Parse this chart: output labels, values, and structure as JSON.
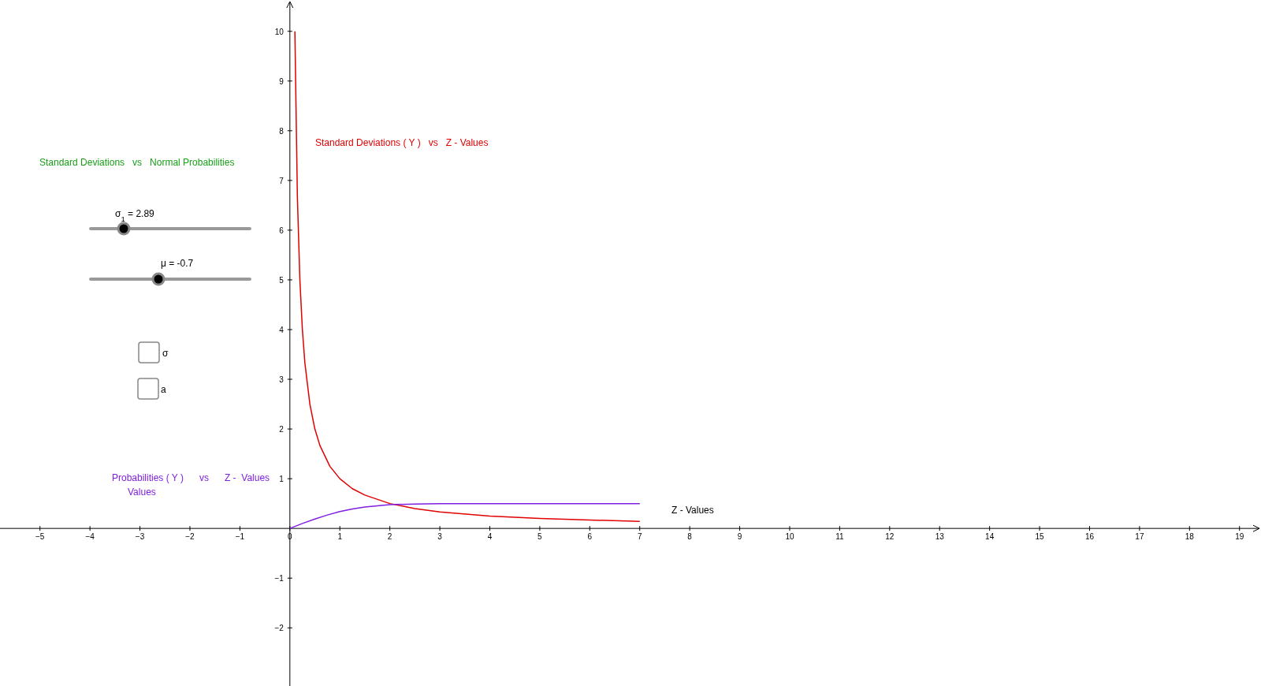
{
  "chart_data": {
    "type": "line",
    "title": "Standard Deviations   vs   Normal Probabilities",
    "xlabel": "Z  - Values",
    "xlim": [
      -5.8,
      19.43
    ],
    "ylim": [
      -3.17,
      10.63
    ],
    "xticks": [
      {
        "value": -5,
        "label": "−5"
      },
      {
        "value": -4,
        "label": "−4"
      },
      {
        "value": -3,
        "label": "−3"
      },
      {
        "value": -2,
        "label": "−2"
      },
      {
        "value": -1,
        "label": "−1"
      },
      0,
      1,
      2,
      3,
      4,
      5,
      6,
      7,
      8,
      9,
      10,
      11,
      12,
      13,
      14,
      15,
      16,
      17,
      18,
      19
    ],
    "yticks": [
      {
        "value": -2,
        "label": "−2"
      },
      {
        "value": -1,
        "label": "−1"
      },
      1,
      2,
      3,
      4,
      5,
      6,
      7,
      8,
      9,
      10
    ],
    "series": [
      {
        "name": "Standard Deviations ( Y )   vs   Z - Values",
        "color": "#e00000",
        "x": [
          0.1,
          0.15,
          0.2,
          0.25,
          0.3,
          0.4,
          0.5,
          0.6,
          0.8,
          1,
          1.25,
          1.5,
          2,
          2.5,
          3,
          4,
          5,
          6,
          7
        ],
        "values": [
          10,
          6.67,
          5,
          4,
          3.33,
          2.5,
          2,
          1.67,
          1.25,
          1,
          0.8,
          0.67,
          0.5,
          0.4,
          0.33,
          0.25,
          0.2,
          0.17,
          0.14
        ]
      },
      {
        "name": "Probabilities ( Y )      vs      Z -  Values",
        "color": "#7f1fe0",
        "x": [
          0,
          0.25,
          0.5,
          0.75,
          1,
          1.25,
          1.5,
          2,
          2.5,
          3,
          4,
          5,
          6,
          7
        ],
        "values": [
          0,
          0.1,
          0.19,
          0.27,
          0.34,
          0.39,
          0.43,
          0.48,
          0.49,
          0.5,
          0.5,
          0.5,
          0.5,
          0.5
        ]
      }
    ],
    "annotations": [
      "σ$_{1}$ = 2.89",
      "μ = -0.7",
      "σ",
      "a",
      "Values"
    ]
  }
}
